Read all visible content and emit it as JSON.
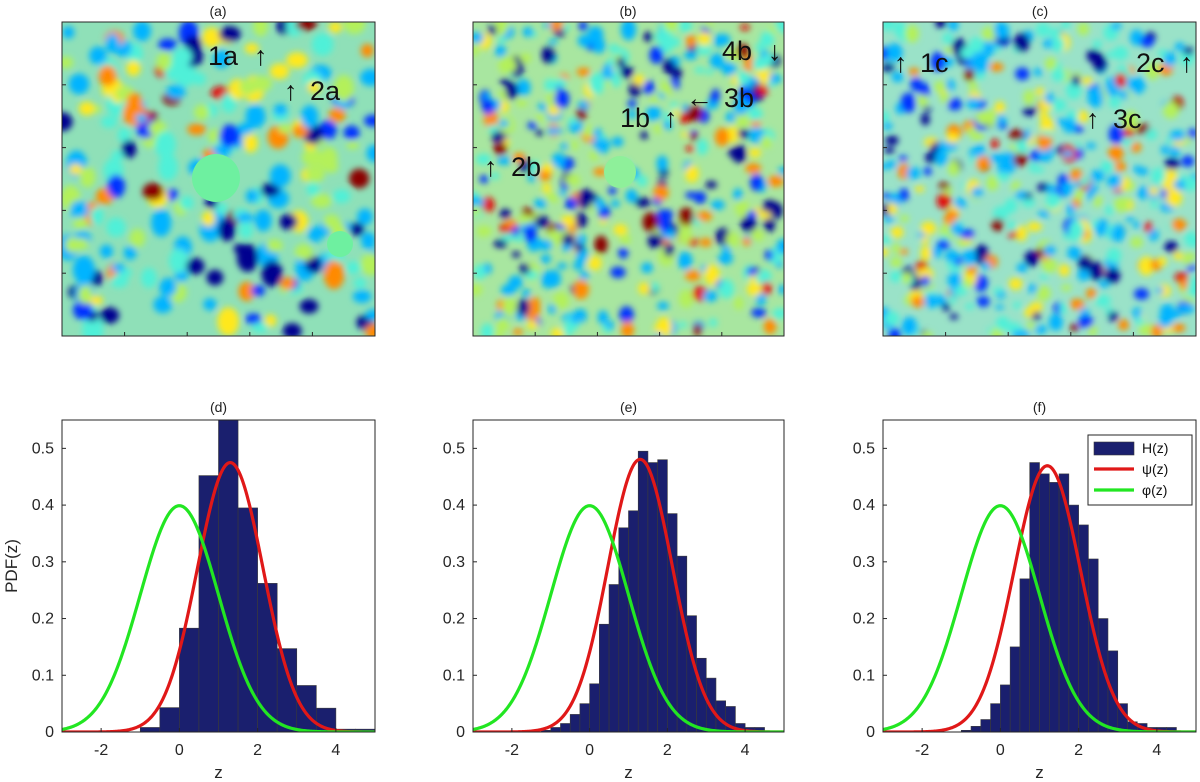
{
  "figure": {
    "heatmap_panels": [
      {
        "title": "(a)",
        "palette": [
          "#00008f",
          "#0033ff",
          "#00b4ff",
          "#4ff0d8",
          "#b4f05a",
          "#ffe81c",
          "#ff8a00",
          "#e01010",
          "#8b0000"
        ],
        "background": "#8fe0b8",
        "flat_patches": [
          {
            "label": "center plateau",
            "color": "#6ef0a0"
          },
          {
            "label": "lower-right plateau",
            "color": "#6ef0a0"
          }
        ],
        "annotations": [
          {
            "label": "1a",
            "arrow": "up",
            "arrow_side": "right"
          },
          {
            "label": "2a",
            "arrow": "up",
            "arrow_side": "left"
          }
        ]
      },
      {
        "title": "(b)",
        "palette": [
          "#00008f",
          "#0033ff",
          "#00b4ff",
          "#4ff0d8",
          "#b4f05a",
          "#ffe81c",
          "#ff8a00",
          "#e01010",
          "#8b0000"
        ],
        "background": "#a8e6a0",
        "flat_patches": [
          {
            "label": "center plateau",
            "color": "#8ef09a"
          }
        ],
        "annotations": [
          {
            "label": "4b",
            "arrow": "down",
            "arrow_side": "right"
          },
          {
            "label": "3b",
            "arrow": "left",
            "arrow_side": "left"
          },
          {
            "label": "1b",
            "arrow": "up",
            "arrow_side": "right"
          },
          {
            "label": "2b",
            "arrow": "up",
            "arrow_side": "left"
          }
        ]
      },
      {
        "title": "(c)",
        "palette": [
          "#00008f",
          "#0033ff",
          "#00b4ff",
          "#4ff0d8",
          "#b4f05a",
          "#ffe81c",
          "#ff8a00",
          "#e01010",
          "#8b0000"
        ],
        "background": "#9ae2c8",
        "flat_patches": [],
        "annotations": [
          {
            "label": "1c",
            "arrow": "up",
            "arrow_side": "left"
          },
          {
            "label": "2c",
            "arrow": "up",
            "arrow_side": "right"
          },
          {
            "label": "3c",
            "arrow": "up",
            "arrow_side": "left"
          }
        ]
      }
    ]
  },
  "chart_data": [
    {
      "type": "bar",
      "title": "(d)",
      "xlabel": "z",
      "ylabel": "PDF(z)",
      "xlim": [
        -3,
        5
      ],
      "ylim": [
        0,
        0.55
      ],
      "xticks": [
        -2,
        0,
        2,
        4
      ],
      "yticks": [
        0,
        0.1,
        0.2,
        0.3,
        0.4,
        0.5
      ],
      "xtick_labels": [
        "-2",
        "0",
        "2",
        "4"
      ],
      "ytick_labels": [
        "0",
        "0.1",
        "0.2",
        "0.3",
        "0.4",
        "0.5"
      ],
      "legend": null,
      "histogram": {
        "name": "H(z)",
        "color": "#1a1f6e",
        "bin_edges": [
          -1,
          -0.5,
          0,
          0.5,
          1,
          1.5,
          2,
          2.5,
          3,
          3.5,
          4,
          4.5,
          5
        ],
        "values": [
          0.008,
          0.043,
          0.183,
          0.452,
          0.552,
          0.395,
          0.262,
          0.147,
          0.082,
          0.042,
          0.005,
          0.005
        ]
      },
      "curves": [
        {
          "name": "ψ(z)",
          "color": "#e01818",
          "mu": 1.3,
          "sigma": 0.84,
          "samples": 321
        },
        {
          "name": "φ(z)",
          "color": "#22e622",
          "mu": 0,
          "sigma": 1,
          "samples": 321
        }
      ]
    },
    {
      "type": "bar",
      "title": "(e)",
      "xlabel": "z",
      "ylabel": "",
      "xlim": [
        -3,
        5
      ],
      "ylim": [
        0,
        0.55
      ],
      "xticks": [
        -2,
        0,
        2,
        4
      ],
      "yticks": [
        0,
        0.1,
        0.2,
        0.3,
        0.4,
        0.5
      ],
      "xtick_labels": [
        "-2",
        "0",
        "2",
        "4"
      ],
      "ytick_labels": [
        "0",
        "0.1",
        "0.2",
        "0.3",
        "0.4",
        "0.5"
      ],
      "legend": null,
      "histogram": {
        "name": "H(z)",
        "color": "#1a1f6e",
        "bin_edges": [
          -1.25,
          -1,
          -0.75,
          -0.5,
          -0.25,
          0,
          0.25,
          0.5,
          0.75,
          1,
          1.25,
          1.5,
          1.75,
          2,
          2.25,
          2.5,
          2.75,
          3,
          3.25,
          3.5,
          3.75,
          4,
          4.25,
          4.5
        ],
        "values": [
          0.003,
          0.008,
          0.015,
          0.031,
          0.05,
          0.085,
          0.19,
          0.26,
          0.36,
          0.39,
          0.495,
          0.475,
          0.48,
          0.385,
          0.31,
          0.205,
          0.13,
          0.095,
          0.055,
          0.045,
          0.015,
          0.008,
          0.008
        ]
      },
      "curves": [
        {
          "name": "ψ(z)",
          "color": "#e01818",
          "mu": 1.3,
          "sigma": 0.83,
          "samples": 321
        },
        {
          "name": "φ(z)",
          "color": "#22e622",
          "mu": 0,
          "sigma": 1,
          "samples": 321
        }
      ]
    },
    {
      "type": "bar",
      "title": "(f)",
      "xlabel": "z",
      "ylabel": "",
      "xlim": [
        -3,
        5
      ],
      "ylim": [
        0,
        0.55
      ],
      "xticks": [
        -2,
        0,
        2,
        4
      ],
      "yticks": [
        0,
        0.1,
        0.2,
        0.3,
        0.4,
        0.5
      ],
      "xtick_labels": [
        "-2",
        "0",
        "2",
        "4"
      ],
      "ytick_labels": [
        "0",
        "0.1",
        "0.2",
        "0.3",
        "0.4",
        "0.5"
      ],
      "legend": {
        "position": "top-right",
        "entries": [
          "H(z)",
          "ψ(z)",
          "φ(z)"
        ]
      },
      "histogram": {
        "name": "H(z)",
        "color": "#1a1f6e",
        "bin_edges": [
          -1,
          -0.75,
          -0.5,
          -0.25,
          0,
          0.25,
          0.5,
          0.75,
          1,
          1.25,
          1.5,
          1.75,
          2,
          2.25,
          2.5,
          2.75,
          3,
          3.25,
          3.5,
          3.75,
          4,
          4.25,
          4.5
        ],
        "values": [
          0.003,
          0.01,
          0.022,
          0.05,
          0.083,
          0.15,
          0.27,
          0.475,
          0.455,
          0.44,
          0.455,
          0.4,
          0.365,
          0.305,
          0.2,
          0.143,
          0.05,
          0.018,
          0.015,
          0.008,
          0.008,
          0.008
        ]
      },
      "curves": [
        {
          "name": "ψ(z)",
          "color": "#e01818",
          "mu": 1.2,
          "sigma": 0.85,
          "samples": 321
        },
        {
          "name": "φ(z)",
          "color": "#22e622",
          "mu": 0,
          "sigma": 1,
          "samples": 321
        }
      ]
    }
  ]
}
